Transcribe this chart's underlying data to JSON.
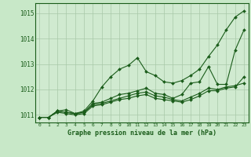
{
  "title": "Graphe pression niveau de la mer (hPa)",
  "background_color": "#c8e8c8",
  "plot_bg_color": "#d0ead0",
  "grid_color": "#a8c8a8",
  "line_color": "#1a5c1a",
  "marker_color": "#1a5c1a",
  "xlim": [
    -0.5,
    23.5
  ],
  "ylim": [
    1010.7,
    1015.4
  ],
  "yticks": [
    1011,
    1012,
    1013,
    1014,
    1015
  ],
  "xticks": [
    0,
    1,
    2,
    3,
    4,
    5,
    6,
    7,
    8,
    9,
    10,
    11,
    12,
    13,
    14,
    15,
    16,
    17,
    18,
    19,
    20,
    21,
    22,
    23
  ],
  "series": [
    [
      1010.9,
      1010.9,
      1011.15,
      1011.2,
      1011.05,
      1011.15,
      1011.55,
      1012.1,
      1012.5,
      1012.8,
      1012.95,
      1013.25,
      1012.7,
      1012.55,
      1012.3,
      1012.25,
      1012.35,
      1012.55,
      1012.8,
      1013.3,
      1013.75,
      1014.35,
      1014.85,
      1015.1
    ],
    [
      1010.9,
      1010.9,
      1011.15,
      1011.1,
      1011.05,
      1011.1,
      1011.45,
      1011.5,
      1011.65,
      1011.8,
      1011.85,
      1011.95,
      1012.05,
      1011.85,
      1011.8,
      1011.65,
      1011.8,
      1012.25,
      1012.3,
      1012.9,
      1012.2,
      1012.2,
      1013.55,
      1014.35
    ],
    [
      1010.9,
      1010.9,
      1011.15,
      1011.1,
      1011.05,
      1011.1,
      1011.4,
      1011.45,
      1011.55,
      1011.65,
      1011.75,
      1011.85,
      1011.9,
      1011.75,
      1011.7,
      1011.6,
      1011.55,
      1011.7,
      1011.85,
      1012.05,
      1012.0,
      1012.1,
      1012.15,
      1012.25
    ],
    [
      1010.9,
      1010.9,
      1011.1,
      1011.05,
      1011.0,
      1011.05,
      1011.35,
      1011.4,
      1011.5,
      1011.6,
      1011.65,
      1011.75,
      1011.8,
      1011.65,
      1011.6,
      1011.55,
      1011.5,
      1011.6,
      1011.75,
      1011.95,
      1011.95,
      1012.05,
      1012.1,
      1012.5
    ]
  ]
}
